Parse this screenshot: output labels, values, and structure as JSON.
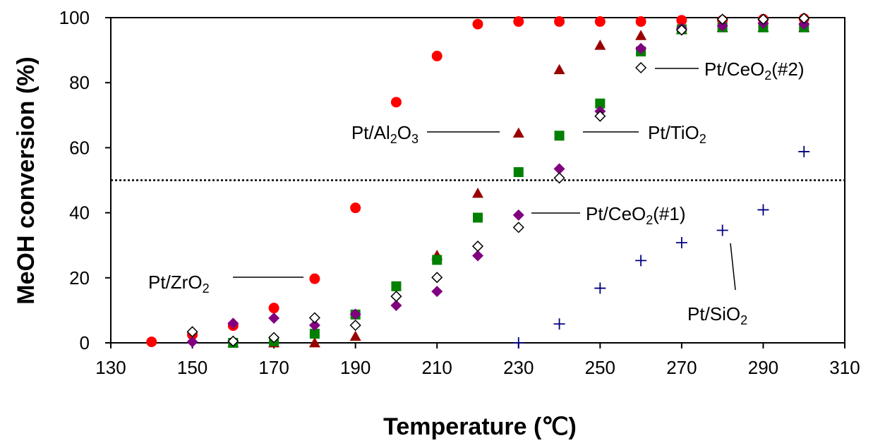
{
  "chart_data": {
    "type": "scatter",
    "title": "",
    "xlabel": "Temperature (℃)",
    "ylabel": "MeOH conversion (%)",
    "xlim": [
      130,
      310
    ],
    "ylim": [
      0,
      100
    ],
    "xticks": [
      130,
      150,
      170,
      190,
      210,
      230,
      250,
      270,
      290,
      310
    ],
    "yticks": [
      0,
      20,
      40,
      60,
      80,
      100
    ],
    "grid": false,
    "legend": "none",
    "reference_line": {
      "y": 50,
      "style": "dotted"
    },
    "series": [
      {
        "name": "Pt/ZrO2",
        "marker": "circle",
        "color": "#ff0000",
        "x": [
          140,
          150,
          160,
          170,
          180,
          190,
          200,
          210,
          220,
          230,
          240,
          250,
          260,
          270,
          280,
          290,
          300
        ],
        "y": [
          0.3,
          2.5,
          5.3,
          10.7,
          19.7,
          41.5,
          74,
          88.2,
          98,
          98.8,
          98.8,
          98.8,
          98.8,
          99.2,
          99.2,
          99.5,
          99.7
        ]
      },
      {
        "name": "Pt/Al2O3",
        "marker": "triangle",
        "color": "#990000",
        "x": [
          160,
          170,
          180,
          190,
          210,
          220,
          230,
          240,
          250,
          260,
          270,
          280,
          290,
          300
        ],
        "y": [
          0,
          0,
          0,
          2,
          26.9,
          46,
          64.5,
          84,
          91.5,
          94.5,
          96.3,
          97,
          97,
          97
        ]
      },
      {
        "name": "Pt/TiO2",
        "marker": "square",
        "color": "#008000",
        "x": [
          160,
          170,
          180,
          190,
          200,
          210,
          220,
          230,
          240,
          250,
          260,
          270,
          280,
          290,
          300
        ],
        "y": [
          0,
          0.5,
          2.8,
          8.7,
          17.4,
          25.5,
          38.5,
          52.5,
          63.7,
          73.6,
          89.6,
          96.4,
          97,
          97,
          97
        ]
      },
      {
        "name": "Pt/CeO2(#1)",
        "marker": "diamond",
        "color": "#800080",
        "x": [
          150,
          160,
          170,
          180,
          190,
          200,
          210,
          220,
          230,
          240,
          250,
          260,
          270,
          280,
          290,
          300
        ],
        "y": [
          0.3,
          6,
          7.6,
          5.4,
          8.8,
          11.5,
          15.8,
          26.8,
          39.3,
          53.5,
          71.2,
          90.5,
          96.7,
          97.5,
          98.3,
          98
        ]
      },
      {
        "name": "Pt/CeO2(#2)",
        "marker": "diamond-open",
        "color": "#000000",
        "x": [
          150,
          160,
          170,
          180,
          190,
          200,
          210,
          220,
          230,
          240,
          250,
          260,
          270,
          280,
          290,
          300
        ],
        "y": [
          3.4,
          0.5,
          1.6,
          7.7,
          5.4,
          14.3,
          20.1,
          29.7,
          35.5,
          50.7,
          69.7,
          84.6,
          96.2,
          99.5,
          99.5,
          99.8
        ]
      },
      {
        "name": "Pt/SiO2",
        "marker": "plus",
        "color": "#000080",
        "x": [
          230,
          240,
          250,
          260,
          270,
          280,
          290,
          300
        ],
        "y": [
          0,
          5.8,
          16.8,
          25.3,
          30.8,
          34.6,
          40.9,
          58.8
        ]
      }
    ],
    "annotations": [
      {
        "label": "Pt/ZrO",
        "sub": "2",
        "tail": "",
        "target": [
          180,
          19.7
        ]
      },
      {
        "label": "Pt/Al",
        "sub": "2",
        "mid": "O",
        "sub2": "3",
        "target": [
          230,
          64.5
        ]
      },
      {
        "label": "Pt/TiO",
        "sub": "2",
        "tail": "",
        "target": [
          240,
          63.7
        ]
      },
      {
        "label": "Pt/CeO",
        "sub": "2",
        "tail": "(#1)",
        "target": [
          230,
          39.3
        ]
      },
      {
        "label": "Pt/CeO",
        "sub": "2",
        "tail": "(#2)",
        "target": [
          260,
          84.6
        ]
      },
      {
        "label": "Pt/SiO",
        "sub": "2",
        "tail": "",
        "target": [
          280,
          34.6
        ]
      }
    ]
  }
}
